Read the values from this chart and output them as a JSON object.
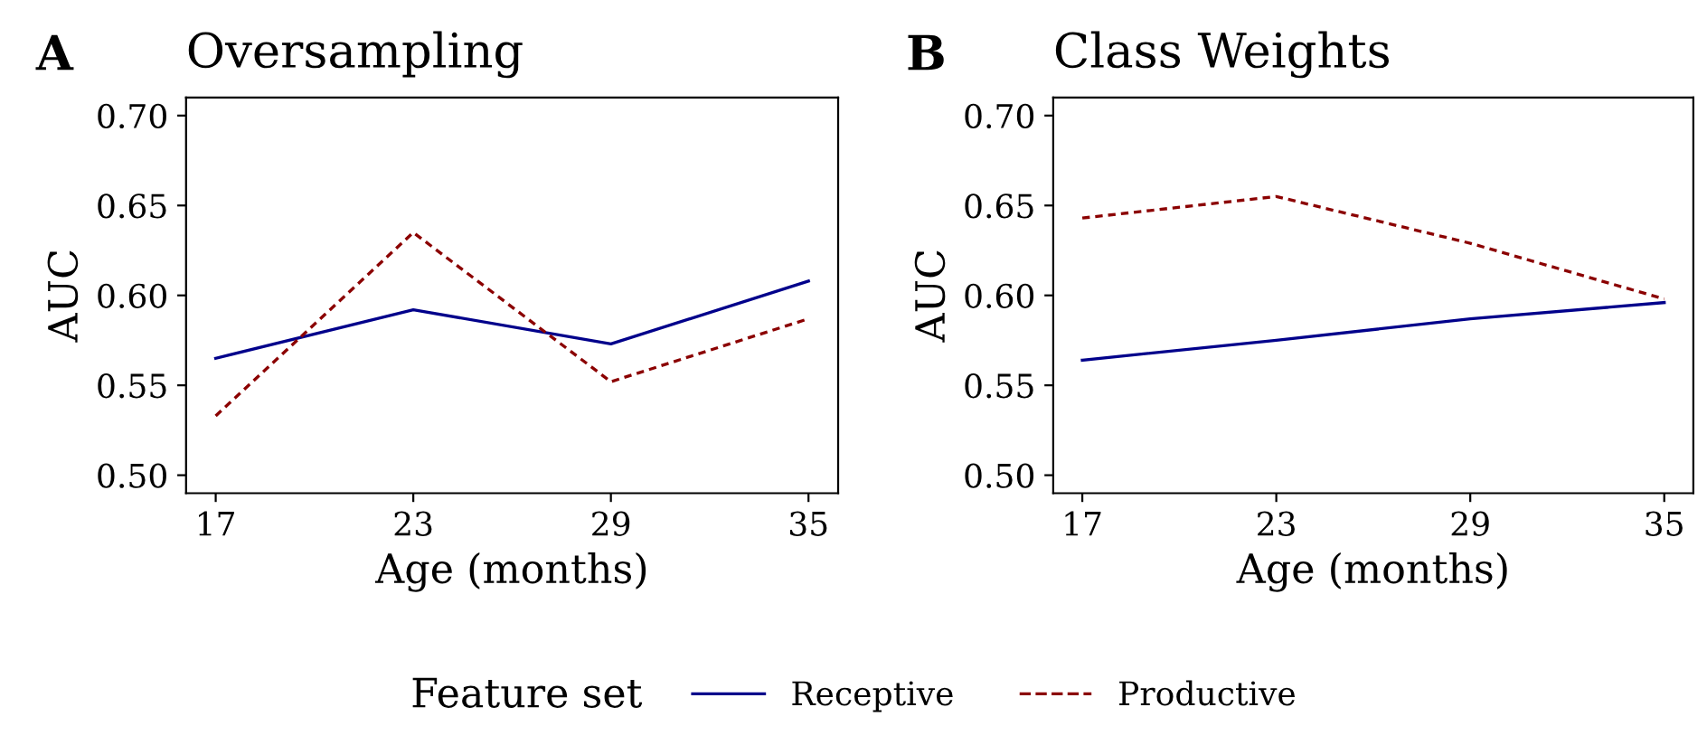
{
  "chart_data": [
    {
      "type": "line",
      "title": "Oversampling",
      "annotations": [
        "A"
      ],
      "xlabel": "Age (months)",
      "ylabel": "AUC",
      "x": [
        17,
        23,
        29,
        35
      ],
      "xlim": [
        16.1,
        35.9
      ],
      "xticks": [
        17,
        23,
        29,
        35
      ],
      "ylim": [
        0.49,
        0.71
      ],
      "yticks": [
        {
          "value": 0.5,
          "label": "0.50"
        },
        {
          "value": 0.55,
          "label": "0.55"
        },
        {
          "value": 0.6,
          "label": "0.60"
        },
        {
          "value": 0.65,
          "label": "0.65"
        },
        {
          "value": 0.7,
          "label": "0.70"
        }
      ],
      "grid": false,
      "legend": "bottom",
      "legend_title": "Feature set",
      "series": [
        {
          "name": "Receptive",
          "color": "#00008b",
          "line_style": "solid",
          "values": [
            0.565,
            0.592,
            0.573,
            0.608
          ]
        },
        {
          "name": "Productive",
          "color": "#8b0000",
          "line_style": "dashed",
          "values": [
            0.533,
            0.635,
            0.552,
            0.587
          ]
        }
      ]
    },
    {
      "type": "line",
      "title": "Class Weights",
      "annotations": [
        "B"
      ],
      "xlabel": "Age (months)",
      "ylabel": "AUC",
      "x": [
        17,
        23,
        29,
        35
      ],
      "xlim": [
        16.1,
        35.9
      ],
      "xticks": [
        17,
        23,
        29,
        35
      ],
      "ylim": [
        0.49,
        0.71
      ],
      "yticks": [
        {
          "value": 0.5,
          "label": "0.50"
        },
        {
          "value": 0.55,
          "label": "0.55"
        },
        {
          "value": 0.6,
          "label": "0.60"
        },
        {
          "value": 0.65,
          "label": "0.65"
        },
        {
          "value": 0.7,
          "label": "0.70"
        }
      ],
      "grid": false,
      "series": [
        {
          "color": "#00008b",
          "line_style": "solid",
          "values": [
            0.564,
            0.575,
            0.587,
            0.596
          ]
        },
        {
          "color": "#8b0000",
          "line_style": "dashed",
          "values": [
            0.643,
            0.655,
            0.629,
            0.598
          ]
        }
      ]
    }
  ]
}
